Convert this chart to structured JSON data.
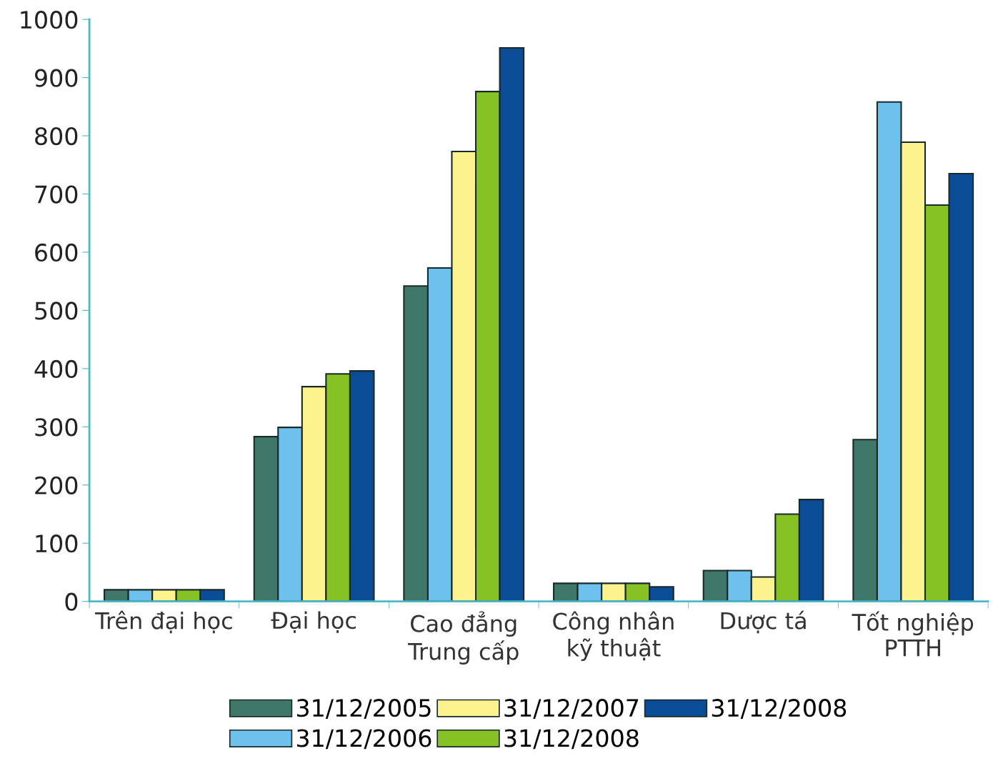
{
  "chart_data": {
    "type": "bar",
    "categories": [
      "Trên đại học",
      "Đại học",
      "Cao đẳng\nTrung cấp",
      "Công nhân\nkỹ thuật",
      "Dược tá",
      "Tốt nghiệp\nPTTH"
    ],
    "series": [
      {
        "name": "31/12/2005",
        "color": "#3f7868",
        "values": [
          20,
          283,
          542,
          31,
          53,
          278
        ]
      },
      {
        "name": "31/12/2006",
        "color": "#6ec1ec",
        "values": [
          20,
          299,
          573,
          31,
          53,
          858
        ]
      },
      {
        "name": "31/12/2007",
        "color": "#fdf38e",
        "values": [
          20,
          369,
          773,
          31,
          42,
          789
        ]
      },
      {
        "name": "31/12/2008",
        "color": "#86c224",
        "values": [
          20,
          391,
          876,
          31,
          150,
          681
        ]
      },
      {
        "name": "31/12/2008",
        "color": "#0a4c96",
        "values": [
          20,
          396,
          951,
          25,
          175,
          735
        ]
      }
    ],
    "ylim": [
      0,
      1000
    ],
    "yticks": [
      0,
      100,
      200,
      300,
      400,
      500,
      600,
      700,
      800,
      900,
      1000
    ],
    "grid": false,
    "legend": "bottom"
  }
}
